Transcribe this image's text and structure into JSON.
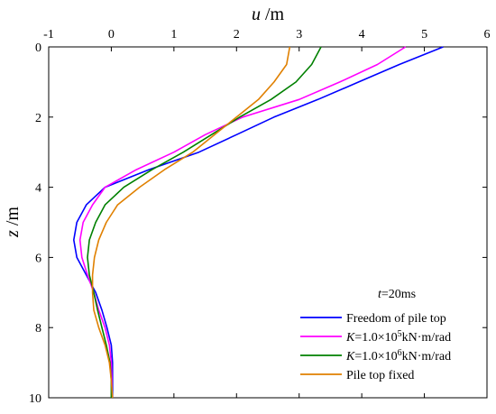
{
  "chart_data": {
    "type": "line",
    "title": "",
    "xlabel": {
      "var": "u",
      "unit": " /m"
    },
    "ylabel": {
      "var": "z",
      "unit": " /m"
    },
    "xlim": [
      -1,
      6
    ],
    "ylim": [
      0,
      10
    ],
    "x_ticks": [
      "-1",
      "0",
      "1",
      "2",
      "3",
      "4",
      "5",
      "6"
    ],
    "y_ticks": [
      "0",
      "2",
      "4",
      "6",
      "8",
      "10"
    ],
    "x_axis_position": "top",
    "y_axis_inverted": true,
    "grid": false,
    "legend": {
      "placement": "bottom-right",
      "title_var": "t",
      "title_rest": "=20ms",
      "entries": [
        {
          "pre": "",
          "sup": "",
          "post": "Freedom of pile top"
        },
        {
          "pre": "=1.0×10",
          "sup": "5",
          "post": "kN·m/rad"
        },
        {
          "pre": "=1.0×10",
          "sup": "6",
          "post": "kN·m/rad"
        },
        {
          "pre": "",
          "sup": "",
          "post": "Pile top fixed"
        }
      ],
      "entry_var": [
        "",
        "K",
        "K",
        ""
      ]
    },
    "series": [
      {
        "color": "#0000ff",
        "points": [
          [
            5.3,
            0
          ],
          [
            4.6,
            0.5
          ],
          [
            3.95,
            1
          ],
          [
            3.3,
            1.5
          ],
          [
            2.6,
            2
          ],
          [
            2.0,
            2.5
          ],
          [
            1.4,
            3
          ],
          [
            0.6,
            3.5
          ],
          [
            -0.1,
            4
          ],
          [
            -0.4,
            4.5
          ],
          [
            -0.55,
            5
          ],
          [
            -0.6,
            5.5
          ],
          [
            -0.55,
            6
          ],
          [
            -0.4,
            6.5
          ],
          [
            -0.25,
            7
          ],
          [
            -0.15,
            7.5
          ],
          [
            -0.07,
            8
          ],
          [
            0,
            8.5
          ],
          [
            0.02,
            9
          ],
          [
            0.02,
            9.5
          ],
          [
            0.02,
            10
          ]
        ]
      },
      {
        "color": "#ff00ff",
        "points": [
          [
            4.7,
            0
          ],
          [
            4.25,
            0.5
          ],
          [
            3.65,
            1
          ],
          [
            3.0,
            1.5
          ],
          [
            2.1,
            2
          ],
          [
            1.5,
            2.5
          ],
          [
            1.0,
            3
          ],
          [
            0.4,
            3.5
          ],
          [
            -0.1,
            4
          ],
          [
            -0.3,
            4.5
          ],
          [
            -0.45,
            5
          ],
          [
            -0.5,
            5.5
          ],
          [
            -0.47,
            6
          ],
          [
            -0.38,
            6.5
          ],
          [
            -0.28,
            7
          ],
          [
            -0.2,
            7.5
          ],
          [
            -0.1,
            8
          ],
          [
            -0.03,
            8.5
          ],
          [
            0,
            9
          ],
          [
            0.01,
            9.5
          ],
          [
            0.01,
            10
          ]
        ]
      },
      {
        "color": "#008000",
        "points": [
          [
            3.35,
            0
          ],
          [
            3.2,
            0.5
          ],
          [
            2.95,
            1
          ],
          [
            2.55,
            1.5
          ],
          [
            2.05,
            2
          ],
          [
            1.6,
            2.5
          ],
          [
            1.15,
            3
          ],
          [
            0.65,
            3.5
          ],
          [
            0.2,
            4
          ],
          [
            -0.1,
            4.5
          ],
          [
            -0.25,
            5
          ],
          [
            -0.35,
            5.5
          ],
          [
            -0.38,
            6
          ],
          [
            -0.35,
            6.5
          ],
          [
            -0.28,
            7
          ],
          [
            -0.22,
            7.5
          ],
          [
            -0.15,
            8
          ],
          [
            -0.08,
            8.5
          ],
          [
            -0.02,
            9
          ],
          [
            0,
            9.5
          ],
          [
            0,
            10
          ]
        ]
      },
      {
        "color": "#e08000",
        "points": [
          [
            2.85,
            0
          ],
          [
            2.8,
            0.5
          ],
          [
            2.6,
            1
          ],
          [
            2.35,
            1.5
          ],
          [
            2.0,
            2
          ],
          [
            1.65,
            2.5
          ],
          [
            1.3,
            3
          ],
          [
            0.85,
            3.5
          ],
          [
            0.45,
            4
          ],
          [
            0.1,
            4.5
          ],
          [
            -0.08,
            5
          ],
          [
            -0.2,
            5.5
          ],
          [
            -0.27,
            6
          ],
          [
            -0.3,
            6.5
          ],
          [
            -0.3,
            7
          ],
          [
            -0.28,
            7.5
          ],
          [
            -0.2,
            8
          ],
          [
            -0.1,
            8.5
          ],
          [
            -0.03,
            9
          ],
          [
            0,
            9.5
          ],
          [
            0.02,
            10
          ]
        ]
      }
    ]
  }
}
